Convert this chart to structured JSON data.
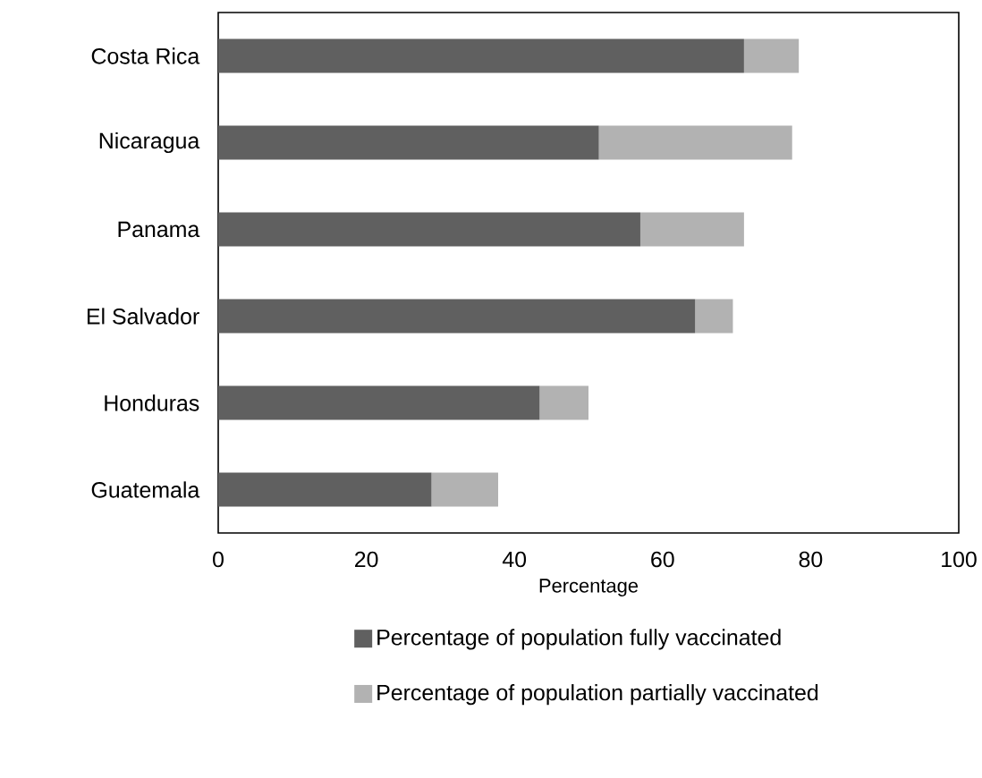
{
  "chart_data": {
    "type": "bar",
    "orientation": "horizontal",
    "stacked": true,
    "xlabel": "Percentage",
    "categories": [
      "Costa Rica",
      "Nicaragua",
      "Panama",
      "El Salvador",
      "Honduras",
      "Guatemala"
    ],
    "series": [
      {
        "name": "Percentage of population fully vaccinated",
        "color": "#606060",
        "values": [
          71.0,
          51.4,
          57.0,
          64.4,
          43.4,
          28.8
        ]
      },
      {
        "name": "Percentage of population partially vaccinated",
        "color": "#b2b2b2",
        "values": [
          7.4,
          26.1,
          14.0,
          5.1,
          6.6,
          9.0
        ]
      }
    ],
    "xlim": [
      0,
      100
    ],
    "xticks": [
      0,
      20,
      40,
      60,
      80,
      100
    ],
    "grid": false,
    "legend": "bottom"
  }
}
